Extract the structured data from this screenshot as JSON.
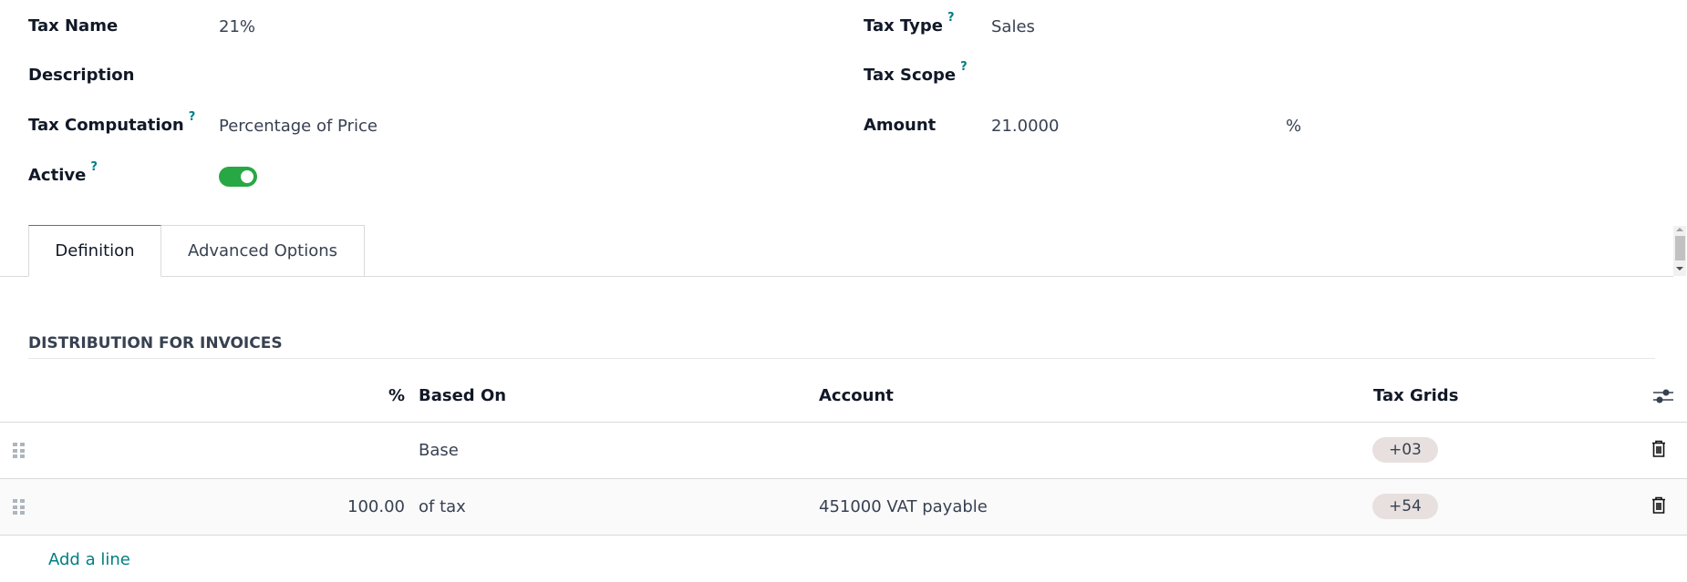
{
  "form": {
    "left": [
      {
        "label": "Tax Name",
        "value": "21%",
        "help": ""
      },
      {
        "label": "Description",
        "value": "",
        "help": ""
      },
      {
        "label": "Tax Computation",
        "value": "Percentage of Price",
        "help": "?"
      },
      {
        "label": "Active",
        "value": "",
        "help": "?",
        "toggle_on": true
      }
    ],
    "right": [
      {
        "label": "Tax Type",
        "value": "Sales",
        "help": "?"
      },
      {
        "label": "Tax Scope",
        "value": "",
        "help": "?"
      },
      {
        "label": "Amount",
        "value": "21.0000",
        "help": "",
        "unit": "%"
      }
    ]
  },
  "tabs": [
    {
      "label": "Definition",
      "active": true
    },
    {
      "label": "Advanced Options",
      "active": false
    }
  ],
  "section": {
    "title": "DISTRIBUTION FOR INVOICES"
  },
  "table": {
    "columns": [
      "%",
      "Based On",
      "Account",
      "Tax Grids"
    ],
    "rows": [
      {
        "percent": "",
        "based_on": "Base",
        "account": "",
        "tax_grid": "+03"
      },
      {
        "percent": "100.00",
        "based_on": "of tax",
        "account": "451000 VAT payable",
        "tax_grid": "+54"
      }
    ],
    "add_line": "Add a line"
  },
  "colors": {
    "accent": "#017e84",
    "toggle": "#28a745",
    "badge": "#e7e0df"
  }
}
